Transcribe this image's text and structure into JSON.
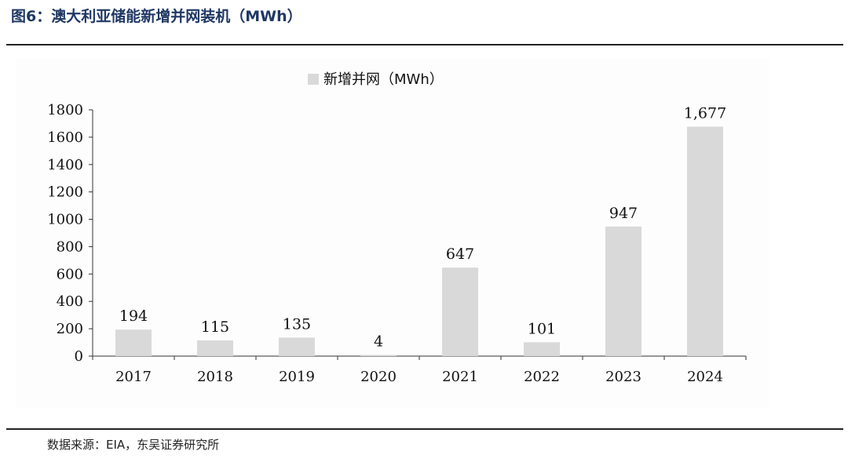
{
  "header": {
    "title": "图6：澳大利亚储能新增并网装机（MWh）"
  },
  "footer": {
    "source": "数据来源：EIA，东吴证券研究所"
  },
  "colors": {
    "title": "#1f3864",
    "bar": "#d9d9d9",
    "axis": "#333333",
    "text": "#111111"
  },
  "chart_data": {
    "type": "bar",
    "categories": [
      "2017",
      "2018",
      "2019",
      "2020",
      "2021",
      "2022",
      "2023",
      "2024"
    ],
    "series": [
      {
        "name": "新增并网（MWh）",
        "values": [
          194,
          115,
          135,
          4,
          647,
          101,
          947,
          1677
        ],
        "labels": [
          "194",
          "115",
          "135",
          "4",
          "647",
          "101",
          "947",
          "1,677"
        ]
      }
    ],
    "yticks": [
      "0",
      "200",
      "400",
      "600",
      "800",
      "1000",
      "1200",
      "1400",
      "1600",
      "1800"
    ],
    "ylim": [
      0,
      1800
    ],
    "legend": "top-center",
    "grid": false
  }
}
